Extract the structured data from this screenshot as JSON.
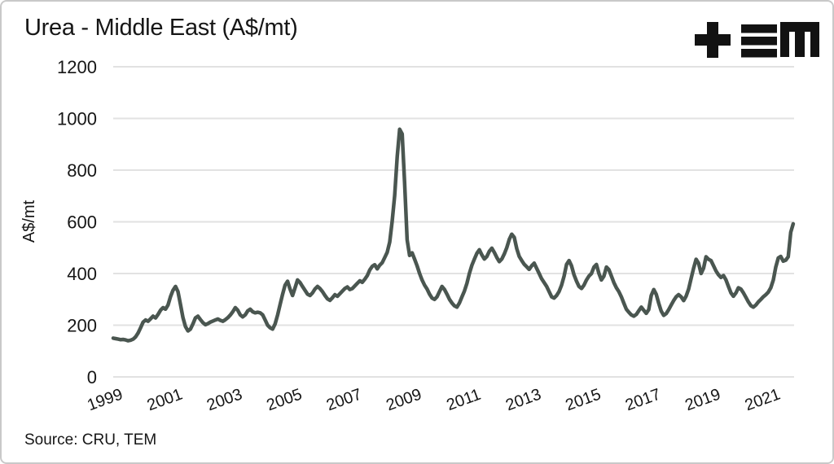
{
  "header": {
    "title": "Urea - Middle East (A$/mt)",
    "logo_name": "TEM",
    "logo_color": "#121212"
  },
  "footer": {
    "source": "Source: CRU, TEM"
  },
  "chart_data": {
    "type": "line",
    "title": "Urea - Middle East (A$/mt)",
    "xlabel": "",
    "ylabel": "A$/mt",
    "ylim": [
      0,
      1200
    ],
    "yticks": [
      0,
      200,
      400,
      600,
      800,
      1000,
      1200
    ],
    "xtick_years": [
      1999,
      2001,
      2003,
      2005,
      2007,
      2009,
      2011,
      2013,
      2015,
      2017,
      2019,
      2021
    ],
    "x_start_year": 1999,
    "frequency": "monthly",
    "x_end": "2021-10",
    "grid": "horizontal",
    "legend": "none",
    "line_color": "#4a5650",
    "grid_color": "#e2e2e2",
    "series": [
      {
        "name": "Urea - Middle East (A$/mt)",
        "values": [
          150,
          148,
          146,
          144,
          145,
          143,
          140,
          142,
          146,
          155,
          170,
          190,
          212,
          220,
          215,
          225,
          235,
          228,
          242,
          258,
          268,
          262,
          278,
          310,
          335,
          350,
          330,
          280,
          230,
          195,
          178,
          185,
          205,
          228,
          235,
          222,
          210,
          202,
          206,
          212,
          216,
          220,
          224,
          219,
          215,
          221,
          229,
          239,
          252,
          268,
          258,
          240,
          232,
          240,
          255,
          262,
          252,
          248,
          250,
          248,
          240,
          220,
          200,
          190,
          185,
          205,
          240,
          280,
          320,
          355,
          370,
          340,
          315,
          345,
          375,
          365,
          350,
          335,
          320,
          315,
          325,
          340,
          350,
          342,
          330,
          315,
          302,
          296,
          306,
          318,
          312,
          322,
          332,
          342,
          348,
          338,
          342,
          352,
          362,
          372,
          366,
          378,
          392,
          414,
          428,
          434,
          418,
          432,
          442,
          462,
          482,
          522,
          602,
          702,
          852,
          958,
          940,
          750,
          530,
          470,
          480,
          455,
          430,
          400,
          375,
          355,
          340,
          320,
          305,
          300,
          310,
          330,
          350,
          338,
          320,
          300,
          286,
          275,
          270,
          286,
          310,
          332,
          362,
          400,
          432,
          456,
          478,
          492,
          472,
          456,
          466,
          486,
          498,
          482,
          462,
          446,
          456,
          476,
          500,
          532,
          552,
          540,
          496,
          466,
          450,
          436,
          426,
          416,
          430,
          440,
          420,
          400,
          380,
          365,
          350,
          330,
          310,
          305,
          315,
          330,
          355,
          390,
          435,
          450,
          430,
          395,
          370,
          350,
          342,
          355,
          375,
          390,
          400,
          425,
          435,
          400,
          375,
          390,
          425,
          415,
          390,
          365,
          345,
          330,
          310,
          285,
          262,
          250,
          240,
          235,
          242,
          256,
          270,
          258,
          246,
          260,
          315,
          338,
          320,
          285,
          255,
          238,
          245,
          260,
          278,
          295,
          310,
          318,
          310,
          295,
          312,
          340,
          380,
          420,
          455,
          440,
          400,
          420,
          465,
          455,
          450,
          430,
          410,
          395,
          385,
          392,
          375,
          350,
          325,
          312,
          325,
          345,
          340,
          325,
          308,
          290,
          276,
          270,
          278,
          290,
          300,
          310,
          318,
          328,
          345,
          375,
          425,
          460,
          466,
          448,
          452,
          465,
          560,
          592
        ]
      }
    ]
  }
}
